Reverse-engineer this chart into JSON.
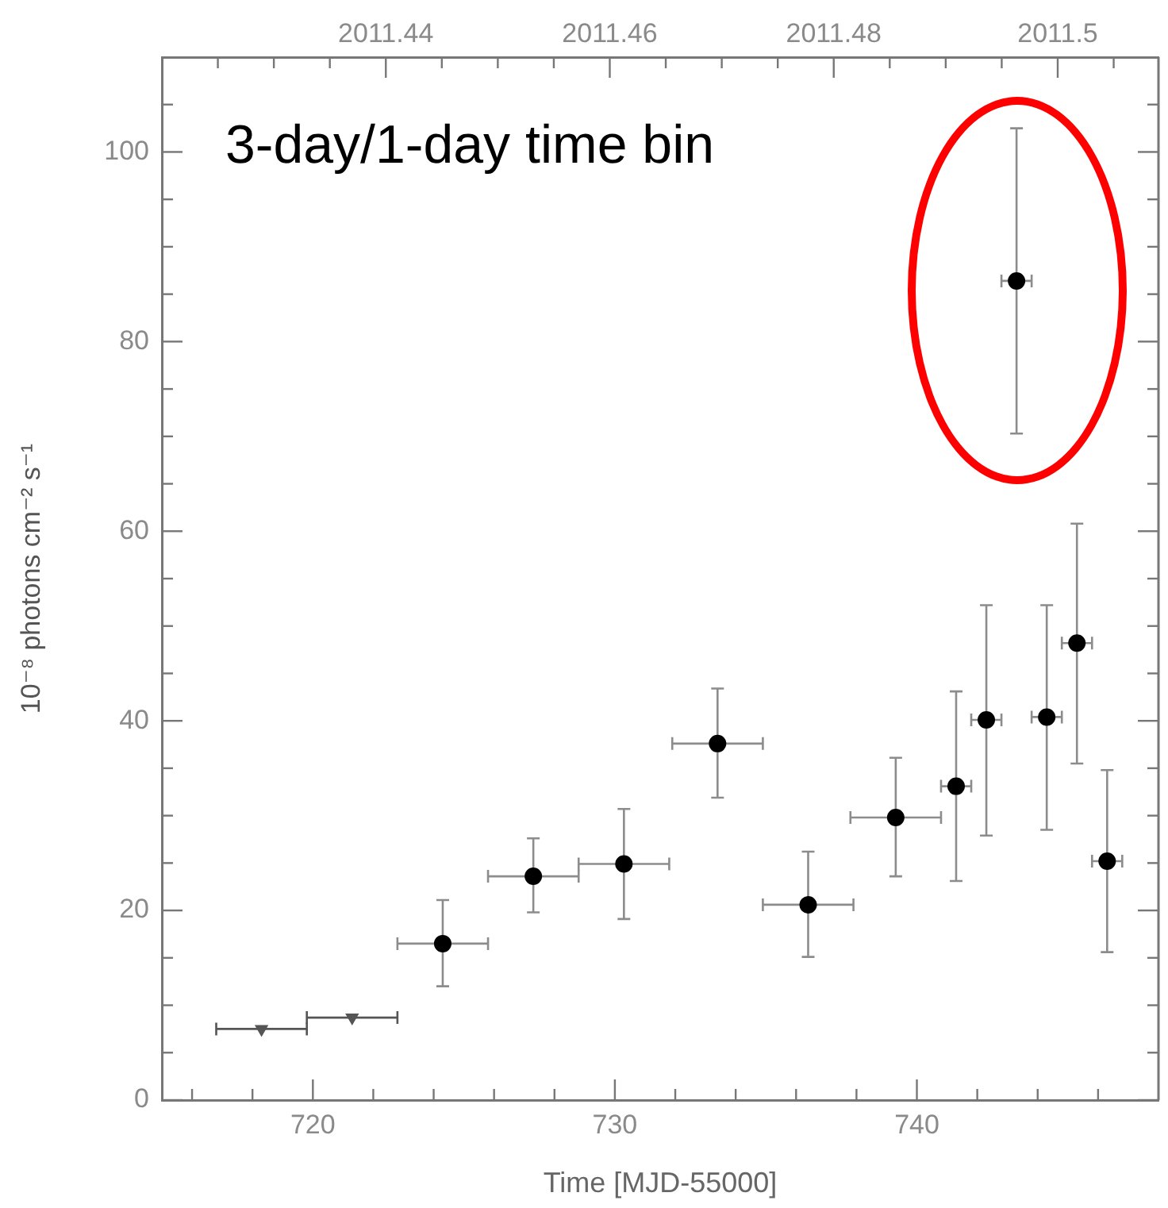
{
  "chart_data": {
    "type": "scatter",
    "xlabel": "Time [MJD-55000]",
    "ylabel": "10⁻⁸ photons cm⁻² s⁻¹",
    "annotations": [
      "3-day/1-day time bin"
    ],
    "xlim": [
      715,
      748
    ],
    "xticks": [
      {
        "value": 716,
        "label": null
      },
      {
        "value": 718,
        "label": null
      },
      720,
      {
        "value": 722,
        "label": null
      },
      {
        "value": 724,
        "label": null
      },
      {
        "value": 726,
        "label": null
      },
      {
        "value": 728,
        "label": null
      },
      730,
      {
        "value": 732,
        "label": null
      },
      {
        "value": 734,
        "label": null
      },
      {
        "value": 736,
        "label": null
      },
      {
        "value": 738,
        "label": null
      },
      740,
      {
        "value": 742,
        "label": null
      },
      {
        "value": 744,
        "label": null
      },
      {
        "value": 746,
        "label": null
      }
    ],
    "x2lim": [
      2011.42,
      2011.509
    ],
    "x2ticks": [
      {
        "value": 2011.425,
        "label": null
      },
      {
        "value": 2011.43,
        "label": null
      },
      {
        "value": 2011.435,
        "label": null
      },
      2011.44,
      {
        "value": 2011.445,
        "label": null
      },
      {
        "value": 2011.45,
        "label": null
      },
      {
        "value": 2011.455,
        "label": null
      },
      2011.46,
      {
        "value": 2011.465,
        "label": null
      },
      {
        "value": 2011.47,
        "label": null
      },
      {
        "value": 2011.475,
        "label": null
      },
      2011.48,
      {
        "value": 2011.485,
        "label": null
      },
      {
        "value": 2011.49,
        "label": null
      },
      {
        "value": 2011.495,
        "label": null
      },
      2011.5,
      {
        "value": 2011.505,
        "label": null
      }
    ],
    "ylim": [
      0,
      110
    ],
    "yticks": [
      0,
      {
        "value": 5,
        "label": null
      },
      {
        "value": 10,
        "label": null
      },
      {
        "value": 15,
        "label": null
      },
      20,
      {
        "value": 25,
        "label": null
      },
      {
        "value": 30,
        "label": null
      },
      {
        "value": 35,
        "label": null
      },
      40,
      {
        "value": 45,
        "label": null
      },
      {
        "value": 50,
        "label": null
      },
      {
        "value": 55,
        "label": null
      },
      60,
      {
        "value": 65,
        "label": null
      },
      {
        "value": 70,
        "label": null
      },
      {
        "value": 75,
        "label": null
      },
      80,
      {
        "value": 85,
        "label": null
      },
      {
        "value": 90,
        "label": null
      },
      {
        "value": 95,
        "label": null
      },
      100,
      {
        "value": 105,
        "label": null
      }
    ],
    "grid": false,
    "legend": false,
    "series": [
      {
        "color": "#000000",
        "marker": "circle",
        "x": [
          724.3,
          727.3,
          730.3,
          733.4,
          736.4,
          739.3,
          741.3,
          742.3,
          743.3,
          744.3,
          745.3,
          746.3
        ],
        "values": [
          16.5,
          23.6,
          24.9,
          37.6,
          20.6,
          29.8,
          33.1,
          40.1,
          86.4,
          40.4,
          48.2,
          25.2
        ],
        "errors": [
          [
            12.0,
            21.1
          ],
          [
            19.8,
            27.6
          ],
          [
            19.1,
            30.7
          ],
          [
            31.9,
            43.4
          ],
          [
            15.1,
            26.2
          ],
          [
            23.6,
            36.1
          ],
          [
            23.1,
            43.1
          ],
          [
            27.9,
            52.2
          ],
          [
            70.3,
            102.5
          ],
          [
            28.5,
            52.2
          ],
          [
            35.5,
            60.8
          ],
          [
            15.6,
            34.8
          ]
        ],
        "xerrors": [
          1.5,
          1.5,
          1.5,
          1.5,
          1.5,
          1.5,
          0.5,
          0.5,
          0.5,
          0.5,
          0.5,
          0.5
        ]
      },
      {
        "color": "#555555",
        "marker": "triangle",
        "x": [
          718.3,
          721.3
        ],
        "values": [
          7.5,
          8.7
        ],
        "xerrors": [
          1.5,
          1.5
        ]
      }
    ]
  }
}
